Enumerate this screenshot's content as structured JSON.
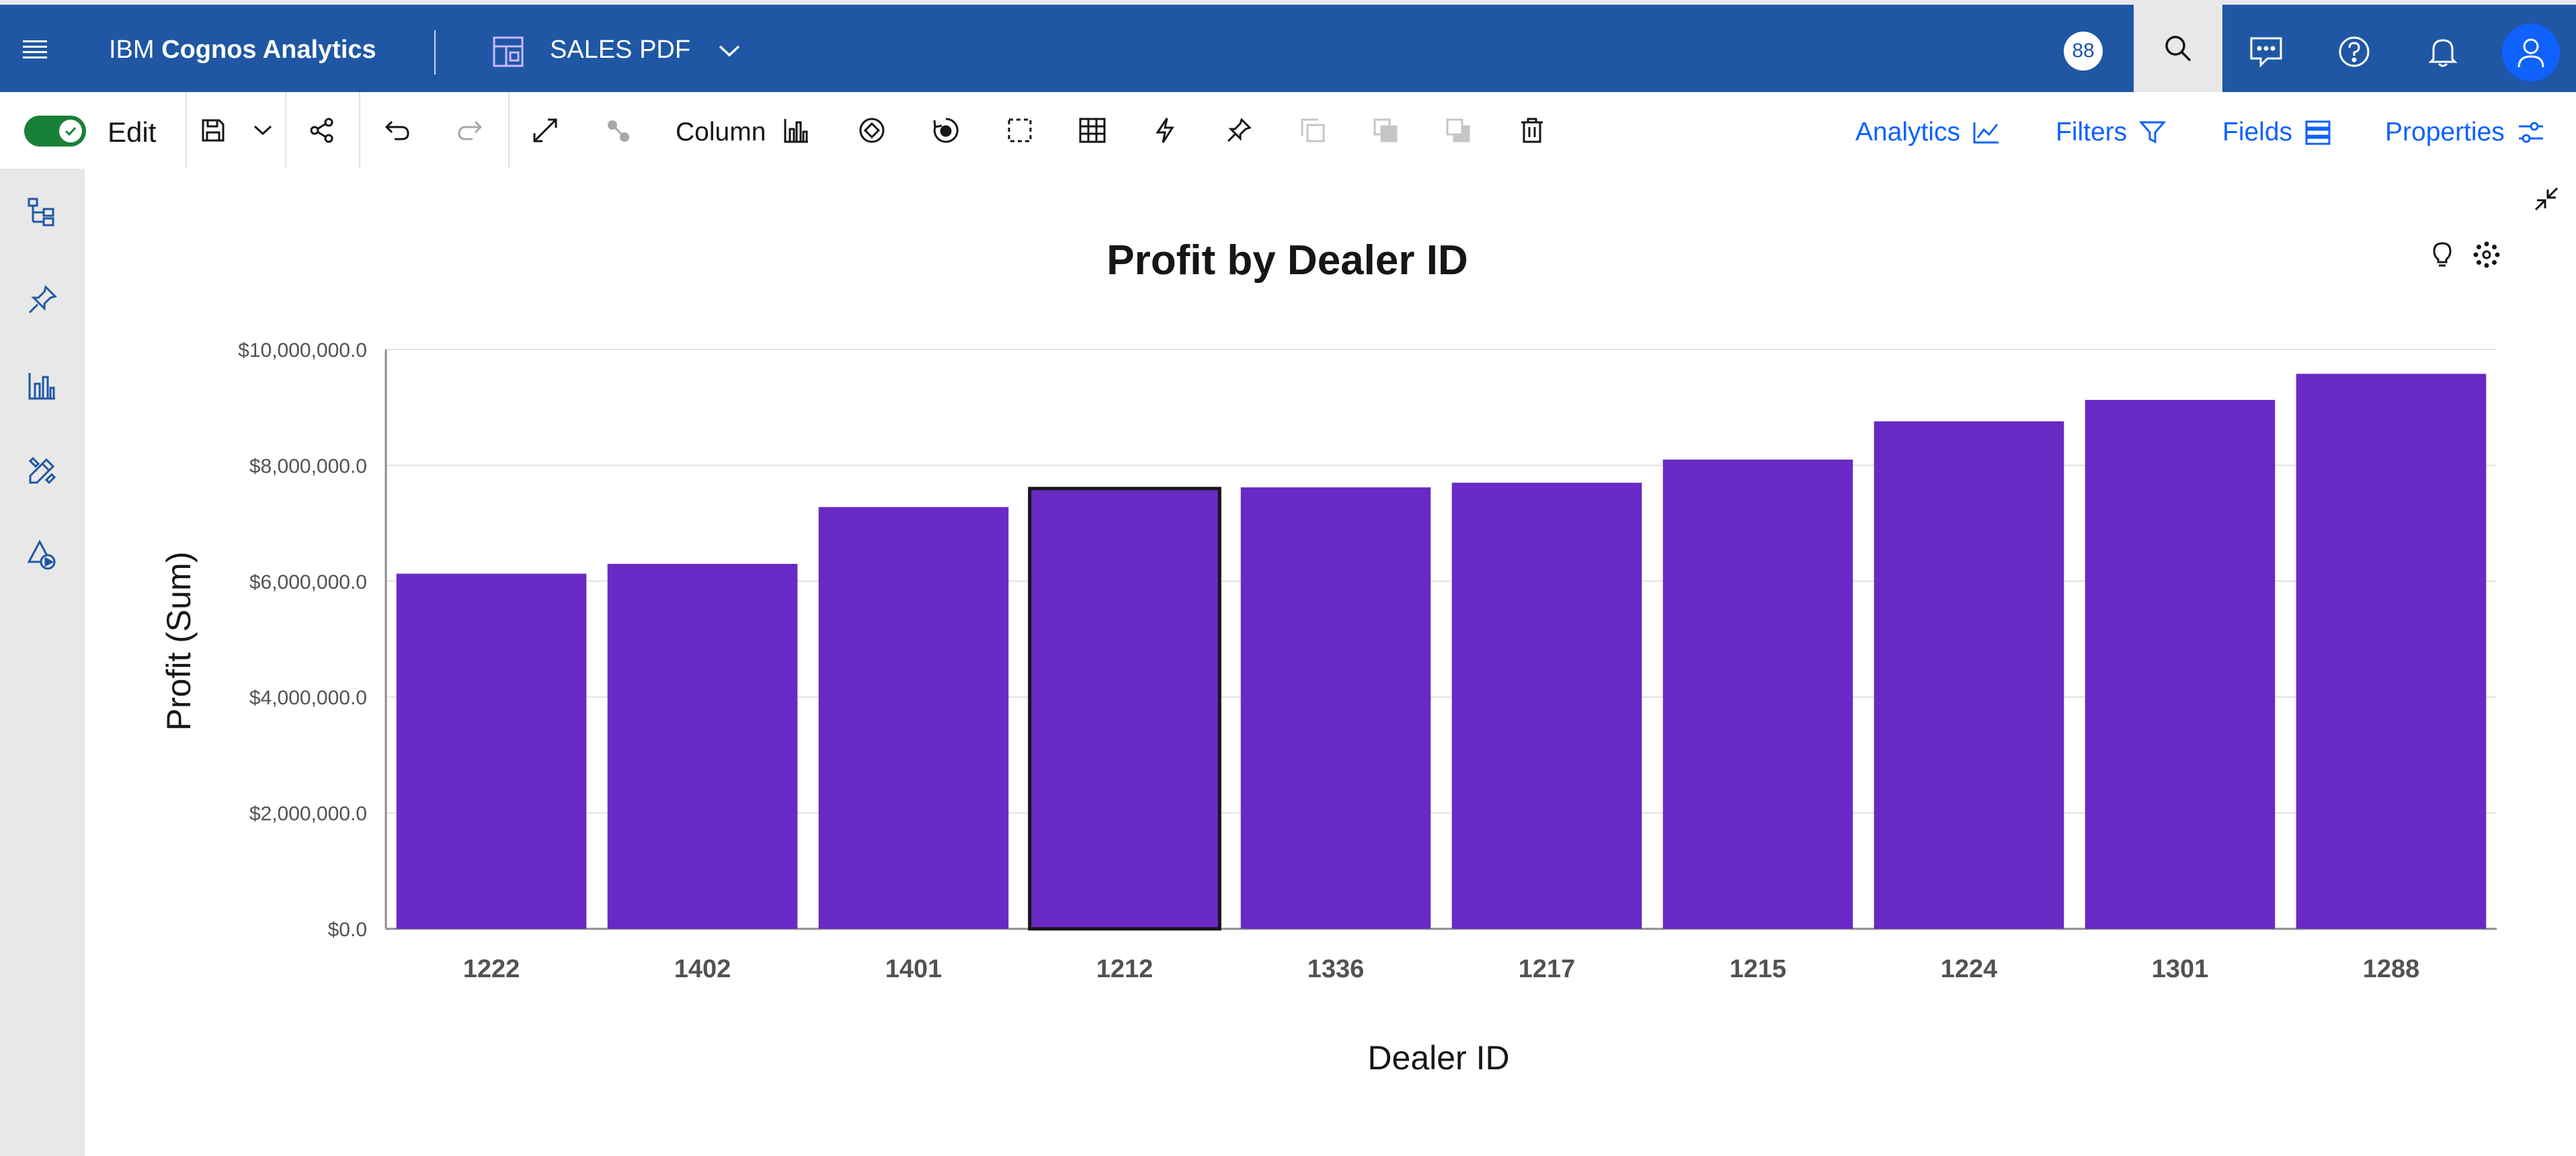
{
  "topbar": {
    "brand_prefix": "IBM",
    "brand_name": "Cognos Analytics",
    "report_name": "SALES PDF",
    "badge_count": "88"
  },
  "toolbar": {
    "edit_label": "Edit",
    "visualization_type": "Column",
    "analytics_label": "Analytics",
    "filters_label": "Filters",
    "fields_label": "Fields",
    "properties_label": "Properties"
  },
  "chart_data": {
    "type": "bar",
    "title": "Profit by Dealer ID",
    "xlabel": "Dealer ID",
    "ylabel": "Profit (Sum)",
    "categories": [
      "1222",
      "1402",
      "1401",
      "1212",
      "1336",
      "1217",
      "1215",
      "1224",
      "1301",
      "1288"
    ],
    "values": [
      6130000,
      6300000,
      7280000,
      7600000,
      7620000,
      7700000,
      8100000,
      8760000,
      9130000,
      9580000
    ],
    "ylim": [
      0,
      10000000
    ],
    "yticks": [
      0,
      2000000,
      4000000,
      6000000,
      8000000,
      10000000
    ],
    "ytick_labels": [
      "$0.0",
      "$2,000,000.0",
      "$4,000,000.0",
      "$6,000,000.0",
      "$8,000,000.0",
      "$10,000,000.0"
    ],
    "bar_color": "#6929c4",
    "selected_category": "1212",
    "grid": true,
    "legend": "none"
  },
  "colors": {
    "header": "#1f57a4",
    "accent": "#0f62fe",
    "toggle_on": "#198038"
  }
}
